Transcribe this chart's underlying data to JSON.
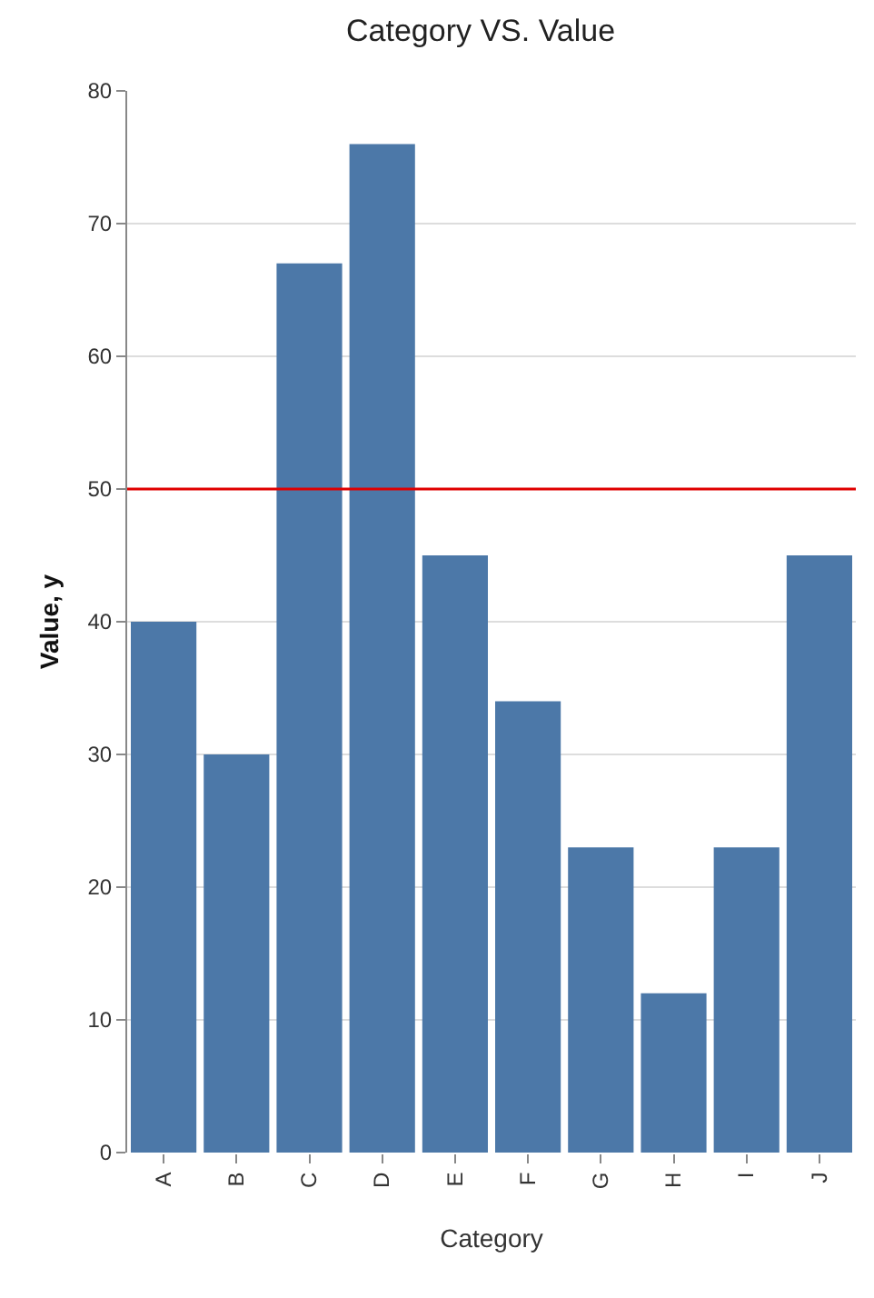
{
  "chart_data": {
    "type": "bar",
    "title": "Category VS. Value",
    "xlabel": "Category",
    "ylabel": "Value, y",
    "categories": [
      "A",
      "B",
      "C",
      "D",
      "E",
      "F",
      "G",
      "H",
      "I",
      "J"
    ],
    "values": [
      40,
      30,
      67,
      76,
      45,
      34,
      23,
      12,
      23,
      45
    ],
    "color": "#4c78a8",
    "ylim": [
      0,
      80
    ],
    "yticks": [
      0,
      10,
      20,
      30,
      40,
      50,
      60,
      70,
      80
    ],
    "grid": "y",
    "ref_lines": [
      {
        "axis": "y",
        "value": 50,
        "color": "#e00000"
      }
    ]
  }
}
